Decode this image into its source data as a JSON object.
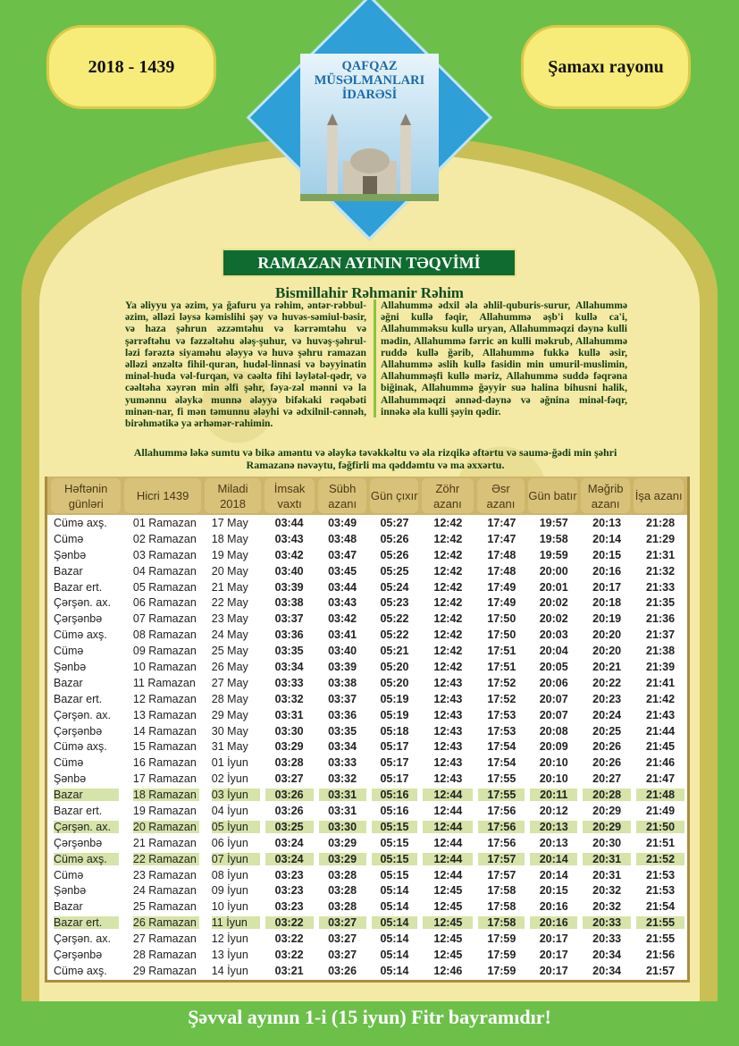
{
  "header": {
    "year_badge": "2018 - 1439",
    "region_badge": "Şamaxı rayonu",
    "org_name": [
      "QAFQAZ",
      "MÜSƏLMANLARI",
      "İDARƏSİ"
    ],
    "banner": "RAMAZAN AYININ TƏQVİMİ",
    "bismillah": "Bismillahir Rəhmanir Rəhim"
  },
  "prayers": {
    "left": "Ya əliyyu ya əzim, ya ğafuru ya rəhim, əntər-rəbbul-əzim, əlləzi ləysə kəmislihi şəy və huvəs-səmiul-bəsir, və haza şəhrun əzzəmtəhu və kərrəmtəhu və şərrəftəhu və fəzzəltəhu ələş-şuhur, və huvəş-şəhrul-ləzi fərəztə siyaməhu ələyyə və huvə şəhru ramazan əlləzi ənzəltə fihil-quran, hudəl-linnasi və bəyyinatin minəl-huda vəl-furqan, və cəəltə fihi ləylətəl-qədr, və cəəltəha xəyrən min əlfi şəhr, fəya-zəl mənni və la yumənnu ələykə munnə ələyyə bifəkaki rəqəbəti minən-nar, fi mən təmunnu ələyhi və ədxilnil-cənnəh, birəhmətikə ya ərhəmər-rahimin.",
    "right": "Allahummə ədxil əla əhlil-quburis-surur, Allahummə əğni kullə fəqir, Allahummə əşb'i kullə ca'i, Allahumməksu kullə uryan, Allahumməqzi dəynə kulli mədin, Allahummə fərric ən kulli məkrub, Allahummə ruddə kullə ğərib, Allahummə fukkə kullə əsir, Allahummə əslih kullə fasidin min umuril-muslimin, Allahumməşfi kullə məriz, Allahummə suddə fəqrəna biğinak, Allahummə ğəyyir suə halina bihusni halik, Allahumməqzi ənnəd-dəynə və əğnina minəl-fəqr, innəkə əla kulli şəyin qədir.",
    "dua": "Allahummə ləkə sumtu və bikə aməntu və ələykə təvəkkəltu və əla rizqikə əftərtu və saumə-ğədi min şəhri Ramazanə nəvəytu, fəğfirli ma qəddəmtu və ma əxxərtu."
  },
  "table": {
    "headers": [
      "Həftənin günləri",
      "Hicri 1439",
      "Miladi 2018",
      "İmsak vaxtı",
      "Sübh azanı",
      "Gün çıxır",
      "Zöhr azanı",
      "Əsr azanı",
      "Gün batır",
      "Məğrib azanı",
      "İşa azanı"
    ],
    "highlight_color": "#d6e4a9",
    "rows": [
      [
        "Cümə axş.",
        "01 Ramazan",
        "17 May",
        "03:44",
        "03:49",
        "05:27",
        "12:42",
        "17:47",
        "19:57",
        "20:13",
        "21:28",
        false
      ],
      [
        "Cümə",
        "02 Ramazan",
        "18 May",
        "03:43",
        "03:48",
        "05:26",
        "12:42",
        "17:47",
        "19:58",
        "20:14",
        "21:29",
        false
      ],
      [
        "Şənbə",
        "03 Ramazan",
        "19 May",
        "03:42",
        "03:47",
        "05:26",
        "12:42",
        "17:48",
        "19:59",
        "20:15",
        "21:31",
        false
      ],
      [
        "Bazar",
        "04 Ramazan",
        "20 May",
        "03:40",
        "03:45",
        "05:25",
        "12:42",
        "17:48",
        "20:00",
        "20:16",
        "21:32",
        false
      ],
      [
        "Bazar ert.",
        "05 Ramazan",
        "21 May",
        "03:39",
        "03:44",
        "05:24",
        "12:42",
        "17:49",
        "20:01",
        "20:17",
        "21:33",
        false
      ],
      [
        "Çərşən. ax.",
        "06 Ramazan",
        "22 May",
        "03:38",
        "03:43",
        "05:23",
        "12:42",
        "17:49",
        "20:02",
        "20:18",
        "21:35",
        false
      ],
      [
        "Çərşənbə",
        "07 Ramazan",
        "23 May",
        "03:37",
        "03:42",
        "05:22",
        "12:42",
        "17:50",
        "20:02",
        "20:19",
        "21:36",
        false
      ],
      [
        "Cümə axş.",
        "08 Ramazan",
        "24 May",
        "03:36",
        "03:41",
        "05:22",
        "12:42",
        "17:50",
        "20:03",
        "20:20",
        "21:37",
        false
      ],
      [
        "Cümə",
        "09 Ramazan",
        "25 May",
        "03:35",
        "03:40",
        "05:21",
        "12:42",
        "17:51",
        "20:04",
        "20:20",
        "21:38",
        false
      ],
      [
        "Şənbə",
        "10 Ramazan",
        "26 May",
        "03:34",
        "03:39",
        "05:20",
        "12:42",
        "17:51",
        "20:05",
        "20:21",
        "21:39",
        false
      ],
      [
        "Bazar",
        "11 Ramazan",
        "27 May",
        "03:33",
        "03:38",
        "05:20",
        "12:43",
        "17:52",
        "20:06",
        "20:22",
        "21:41",
        false
      ],
      [
        "Bazar ert.",
        "12 Ramazan",
        "28 May",
        "03:32",
        "03:37",
        "05:19",
        "12:43",
        "17:52",
        "20:07",
        "20:23",
        "21:42",
        false
      ],
      [
        "Çərşən. ax.",
        "13 Ramazan",
        "29 May",
        "03:31",
        "03:36",
        "05:19",
        "12:43",
        "17:53",
        "20:07",
        "20:24",
        "21:43",
        false
      ],
      [
        "Çərşənbə",
        "14 Ramazan",
        "30 May",
        "03:30",
        "03:35",
        "05:18",
        "12:43",
        "17:53",
        "20:08",
        "20:25",
        "21:44",
        false
      ],
      [
        "Cümə axş.",
        "15 Ramazan",
        "31 May",
        "03:29",
        "03:34",
        "05:17",
        "12:43",
        "17:54",
        "20:09",
        "20:26",
        "21:45",
        false
      ],
      [
        "Cümə",
        "16 Ramazan",
        "01 İyun",
        "03:28",
        "03:33",
        "05:17",
        "12:43",
        "17:54",
        "20:10",
        "20:26",
        "21:46",
        false
      ],
      [
        "Şənbə",
        "17 Ramazan",
        "02 İyun",
        "03:27",
        "03:32",
        "05:17",
        "12:43",
        "17:55",
        "20:10",
        "20:27",
        "21:47",
        false
      ],
      [
        "Bazar",
        "18 Ramazan",
        "03 İyun",
        "03:26",
        "03:31",
        "05:16",
        "12:44",
        "17:55",
        "20:11",
        "20:28",
        "21:48",
        true
      ],
      [
        "Bazar ert.",
        "19 Ramazan",
        "04 İyun",
        "03:26",
        "03:31",
        "05:16",
        "12:44",
        "17:56",
        "20:12",
        "20:29",
        "21:49",
        false
      ],
      [
        "Çərşən. ax.",
        "20 Ramazan",
        "05 İyun",
        "03:25",
        "03:30",
        "05:15",
        "12:44",
        "17:56",
        "20:13",
        "20:29",
        "21:50",
        true
      ],
      [
        "Çərşənbə",
        "21 Ramazan",
        "06 İyun",
        "03:24",
        "03:29",
        "05:15",
        "12:44",
        "17:56",
        "20:13",
        "20:30",
        "21:51",
        false
      ],
      [
        "Cümə axş.",
        "22 Ramazan",
        "07 İyun",
        "03:24",
        "03:29",
        "05:15",
        "12:44",
        "17:57",
        "20:14",
        "20:31",
        "21:52",
        true
      ],
      [
        "Cümə",
        "23 Ramazan",
        "08 İyun",
        "03:23",
        "03:28",
        "05:15",
        "12:44",
        "17:57",
        "20:14",
        "20:31",
        "21:53",
        false
      ],
      [
        "Şənbə",
        "24 Ramazan",
        "09 İyun",
        "03:23",
        "03:28",
        "05:14",
        "12:45",
        "17:58",
        "20:15",
        "20:32",
        "21:53",
        false
      ],
      [
        "Bazar",
        "25 Ramazan",
        "10 İyun",
        "03:23",
        "03:28",
        "05:14",
        "12:45",
        "17:58",
        "20:16",
        "20:32",
        "21:54",
        false
      ],
      [
        "Bazar ert.",
        "26 Ramazan",
        "11 İyun",
        "03:22",
        "03:27",
        "05:14",
        "12:45",
        "17:58",
        "20:16",
        "20:33",
        "21:55",
        true
      ],
      [
        "Çərşən. ax.",
        "27 Ramazan",
        "12 İyun",
        "03:22",
        "03:27",
        "05:14",
        "12:45",
        "17:59",
        "20:17",
        "20:33",
        "21:55",
        false
      ],
      [
        "Çərşənbə",
        "28 Ramazan",
        "13 İyun",
        "03:22",
        "03:27",
        "05:14",
        "12:45",
        "17:59",
        "20:17",
        "20:34",
        "21:56",
        false
      ],
      [
        "Cümə axş.",
        "29 Ramazan",
        "14 İyun",
        "03:21",
        "03:26",
        "05:14",
        "12:46",
        "17:59",
        "20:17",
        "20:34",
        "21:57",
        false
      ]
    ]
  },
  "footer": "Şəvval ayının 1-i (15 iyun) Fitr bayramıdır!"
}
